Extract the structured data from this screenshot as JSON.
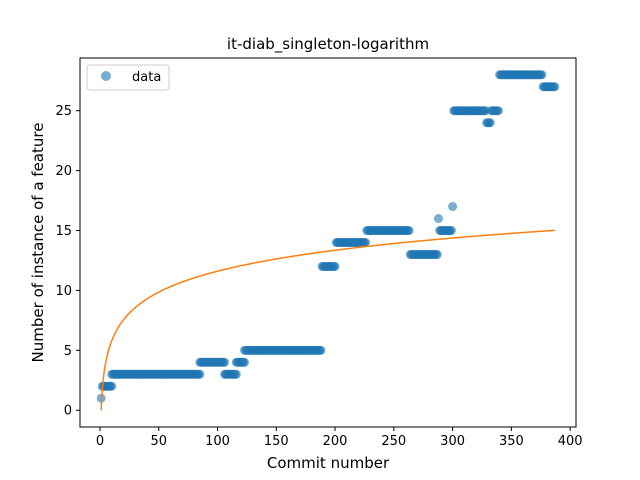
{
  "chart_data": {
    "type": "scatter",
    "title": "it-diab_singleton-logarithm",
    "xlabel": "Commit number",
    "ylabel": "Number of instance of a feature",
    "xlim": [
      -17,
      405
    ],
    "ylim": [
      -1.4,
      29.4
    ],
    "x_ticks": [
      0,
      50,
      100,
      150,
      200,
      250,
      300,
      350,
      400
    ],
    "y_ticks": [
      0,
      5,
      10,
      15,
      20,
      25
    ],
    "grid": false,
    "legend": {
      "placement": "top-left",
      "entries": [
        {
          "label": "data",
          "color": "#1f77b4",
          "marker": "circle"
        }
      ]
    },
    "series": [
      {
        "name": "data",
        "kind": "scatter",
        "color": "#1f77b4",
        "runs": [
          {
            "x_start": 1,
            "x_end": 1,
            "y": 1
          },
          {
            "x_start": 2,
            "x_end": 10,
            "y": 2
          },
          {
            "x_start": 10,
            "x_end": 85,
            "y": 3
          },
          {
            "x_start": 85,
            "x_end": 106,
            "y": 4
          },
          {
            "x_start": 106,
            "x_end": 116,
            "y": 3
          },
          {
            "x_start": 116,
            "x_end": 123,
            "y": 4
          },
          {
            "x_start": 123,
            "x_end": 188,
            "y": 5
          },
          {
            "x_start": 189,
            "x_end": 200,
            "y": 12
          },
          {
            "x_start": 201,
            "x_end": 226,
            "y": 14
          },
          {
            "x_start": 227,
            "x_end": 263,
            "y": 15
          },
          {
            "x_start": 264,
            "x_end": 287,
            "y": 13
          },
          {
            "x_start": 288,
            "x_end": 288,
            "y": 16
          },
          {
            "x_start": 289,
            "x_end": 299,
            "y": 15
          },
          {
            "x_start": 300,
            "x_end": 300,
            "y": 17
          },
          {
            "x_start": 301,
            "x_end": 328,
            "y": 25
          },
          {
            "x_start": 329,
            "x_end": 332,
            "y": 24
          },
          {
            "x_start": 333,
            "x_end": 339,
            "y": 25
          },
          {
            "x_start": 340,
            "x_end": 376,
            "y": 28
          },
          {
            "x_start": 377,
            "x_end": 387,
            "y": 27
          }
        ]
      },
      {
        "name": "",
        "kind": "line",
        "color": "#ff7f0e",
        "function": "logarithm",
        "x_range": [
          1,
          387
        ],
        "coefficient": 2.52
      }
    ]
  }
}
